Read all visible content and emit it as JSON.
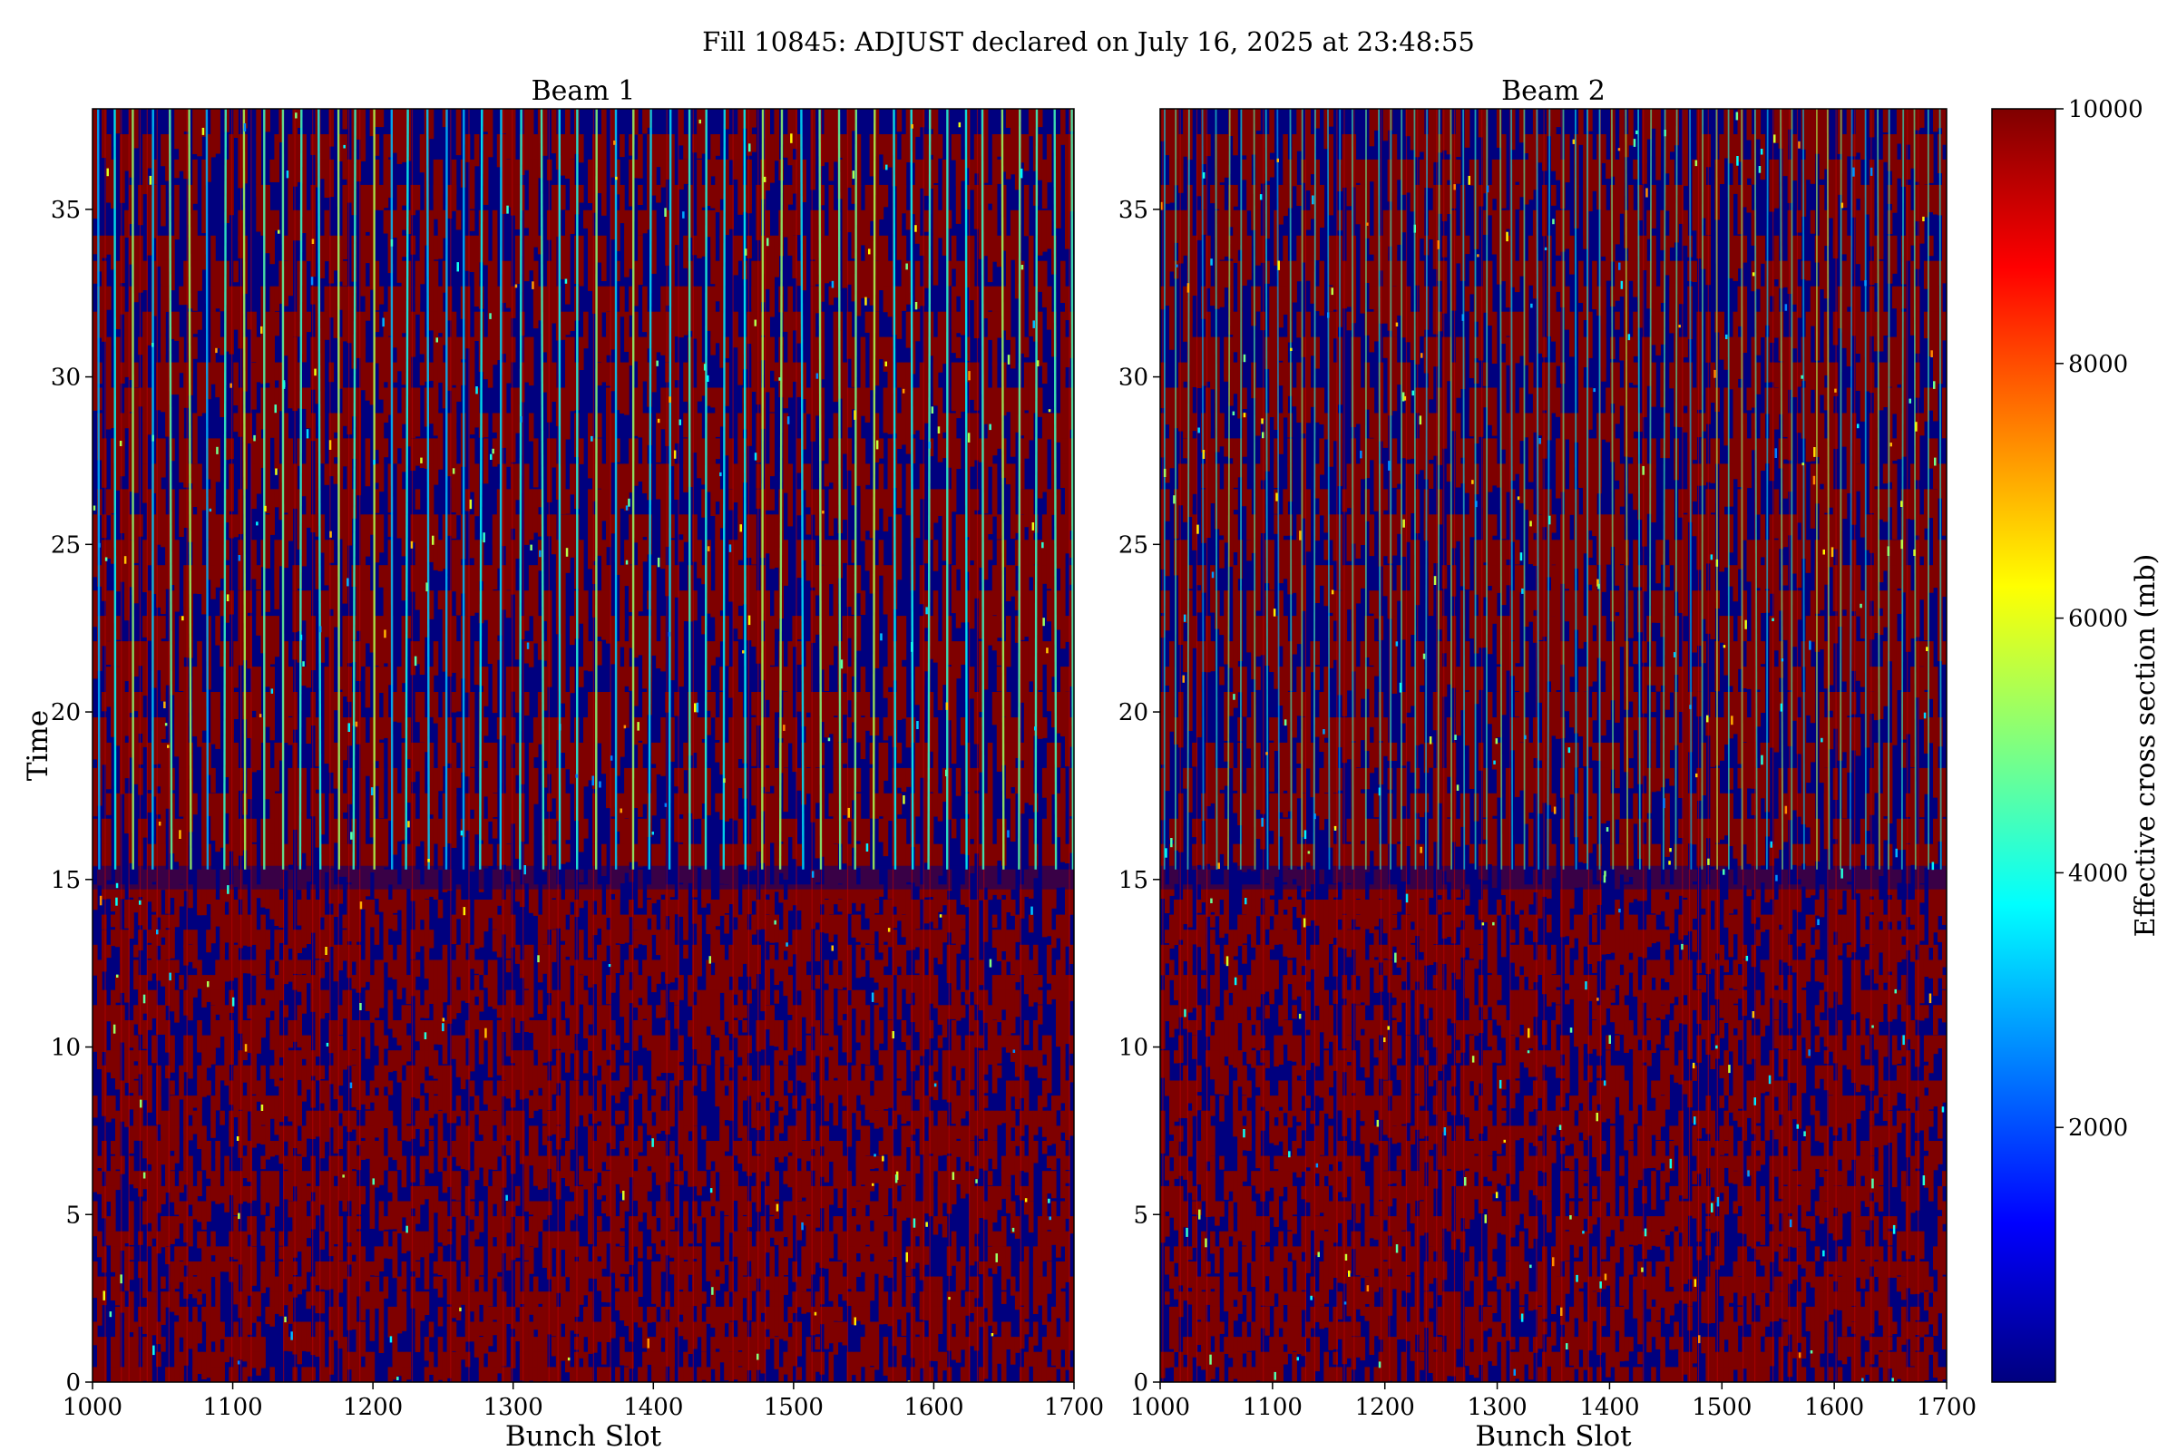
{
  "figure": {
    "title": "Fill 10845: ADJUST declared on July 16, 2025 at 23:48:55"
  },
  "chart_data": [
    {
      "type": "heatmap",
      "title": "Beam 1",
      "xlabel": "Bunch Slot",
      "ylabel": "Time",
      "xlim": [
        1000,
        1700
      ],
      "ylim": [
        0,
        38
      ],
      "xticks": [
        "1000",
        "1100",
        "1200",
        "1300",
        "1400",
        "1500",
        "1600",
        "1700"
      ],
      "yticks": [
        "0",
        "5",
        "10",
        "15",
        "20",
        "25",
        "30",
        "35"
      ],
      "regime_change_time": 15.3,
      "grid": false
    },
    {
      "type": "heatmap",
      "title": "Beam 2",
      "xlabel": "Bunch Slot",
      "ylabel": "",
      "xlim": [
        1000,
        1700
      ],
      "ylim": [
        0,
        38
      ],
      "xticks": [
        "1000",
        "1100",
        "1200",
        "1300",
        "1400",
        "1500",
        "1600",
        "1700"
      ],
      "yticks": [
        "0",
        "5",
        "10",
        "15",
        "20",
        "25",
        "30",
        "35"
      ],
      "regime_change_time": 15.3,
      "grid": false
    }
  ],
  "colorbar": {
    "label": "Effective cross section (mb)",
    "min": 0,
    "max": 10000,
    "ticks": [
      "2000",
      "4000",
      "6000",
      "8000",
      "10000"
    ],
    "colormap": "jet",
    "colors": [
      "#00007f",
      "#0000ff",
      "#00ffff",
      "#ffff00",
      "#ff0000",
      "#7f0000"
    ]
  }
}
